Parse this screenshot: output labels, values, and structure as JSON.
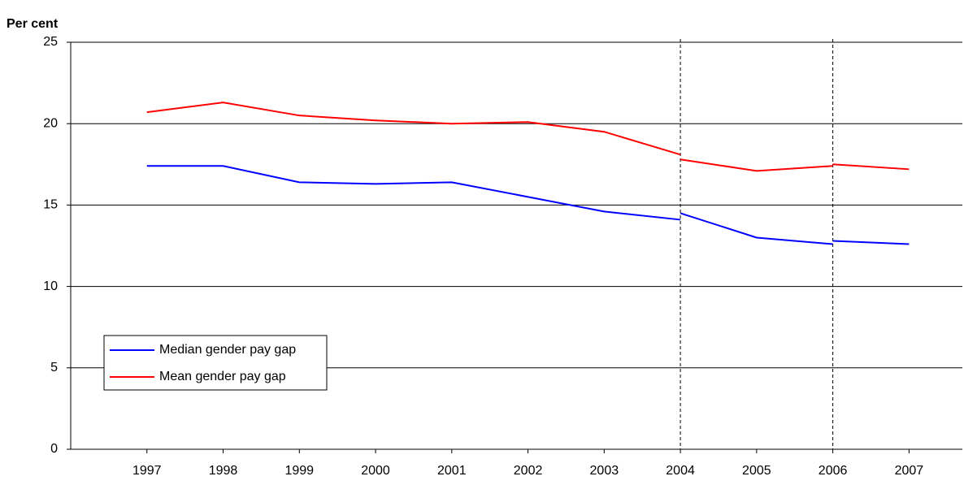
{
  "chart_data": {
    "type": "line",
    "y_label": "Per cent",
    "x": [
      1997,
      1998,
      1999,
      2000,
      2001,
      2002,
      2003,
      2004,
      2004,
      2004,
      2005,
      2006,
      2006,
      2006,
      2007
    ],
    "series": [
      {
        "name": "Median gender pay gap",
        "color": "#0000ff",
        "values": [
          17.4,
          17.4,
          16.4,
          16.3,
          16.4,
          15.5,
          14.6,
          14.1,
          null,
          14.5,
          13.0,
          12.6,
          null,
          12.8,
          12.6
        ]
      },
      {
        "name": "Mean gender pay gap",
        "color": "#ff0000",
        "values": [
          20.7,
          21.3,
          20.5,
          20.2,
          20.0,
          20.1,
          19.5,
          18.1,
          null,
          17.8,
          17.1,
          17.4,
          null,
          17.5,
          17.2
        ]
      }
    ],
    "xlim": [
      1996,
      2007.7
    ],
    "xticks": [
      1997,
      1998,
      1999,
      2000,
      2001,
      2002,
      2003,
      2004,
      2005,
      2006,
      2007
    ],
    "ylim": [
      0,
      25
    ],
    "yticks": [
      0,
      5,
      10,
      15,
      20,
      25
    ],
    "vlines": [
      2004,
      2006
    ],
    "grid": true,
    "legend": "lower left"
  }
}
